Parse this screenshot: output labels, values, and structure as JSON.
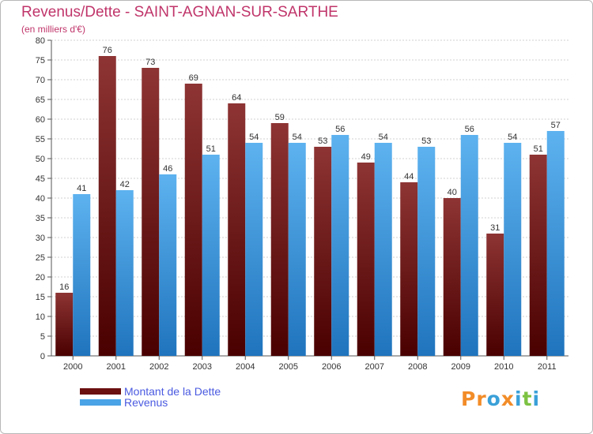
{
  "header": {
    "title": "Revenus/Dette - SAINT-AGNAN-SUR-SARTHE",
    "subtitle": "(en milliers d'€)"
  },
  "legend": {
    "items": [
      {
        "label": "Montant de la Dette",
        "color": "#7a1a1a"
      },
      {
        "label": "Revenus",
        "color": "#4aa3e6"
      }
    ]
  },
  "logo": {
    "text": "Proxiti",
    "letters": [
      {
        "ch": "P",
        "color": "#f28c28"
      },
      {
        "ch": "r",
        "color": "#f28c28"
      },
      {
        "ch": "o",
        "color": "#3aa0d8"
      },
      {
        "ch": "x",
        "color": "#f28c28"
      },
      {
        "ch": "i",
        "color": "#3aa0d8"
      },
      {
        "ch": "t",
        "color": "#7cc242"
      },
      {
        "ch": "i",
        "color": "#3aa0d8"
      }
    ]
  },
  "chart_data": {
    "type": "bar",
    "categories": [
      "2000",
      "2001",
      "2002",
      "2003",
      "2004",
      "2005",
      "2006",
      "2007",
      "2008",
      "2009",
      "2010",
      "2011"
    ],
    "series": [
      {
        "name": "Montant de la Dette",
        "color": "#7a1a1a",
        "values": [
          16,
          76,
          73,
          69,
          64,
          59,
          53,
          49,
          44,
          40,
          31,
          51
        ]
      },
      {
        "name": "Revenus",
        "color": "#4aa3e6",
        "values": [
          41,
          42,
          46,
          51,
          54,
          54,
          56,
          54,
          53,
          56,
          54,
          57
        ]
      }
    ],
    "ylim": [
      0,
      80
    ],
    "yticks": [
      0,
      5,
      10,
      15,
      20,
      25,
      30,
      35,
      40,
      45,
      50,
      55,
      60,
      65,
      70,
      75,
      80
    ],
    "grid": true,
    "legend_position": "bottom-left"
  }
}
